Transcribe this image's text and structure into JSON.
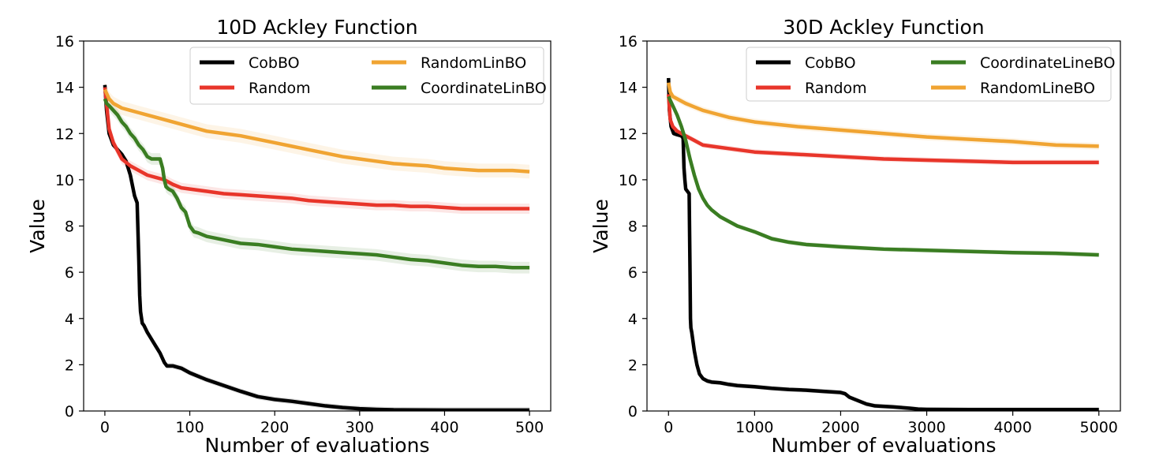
{
  "chart_data": [
    {
      "type": "line",
      "title": "10D Ackley Function",
      "xlabel": "Number of evaluations",
      "ylabel": "Value",
      "xlim": [
        -25,
        525
      ],
      "ylim": [
        0,
        16
      ],
      "xticks": [
        0,
        100,
        200,
        300,
        400,
        500
      ],
      "yticks": [
        0,
        2,
        4,
        6,
        8,
        10,
        12,
        14,
        16
      ],
      "grid": false,
      "legend": {
        "placement": "top-right",
        "columns": 2
      },
      "series": [
        {
          "name": "CobBO",
          "color": "#000000",
          "x": [
            0,
            2,
            5,
            10,
            15,
            20,
            25,
            30,
            35,
            38,
            40,
            41,
            42,
            44,
            46,
            50,
            55,
            60,
            65,
            70,
            73,
            80,
            90,
            100,
            120,
            140,
            160,
            180,
            200,
            220,
            240,
            260,
            280,
            300,
            320,
            340,
            400,
            450,
            500
          ],
          "y": [
            14.1,
            13.0,
            12.0,
            11.5,
            11.3,
            11.1,
            10.8,
            10.2,
            9.3,
            9.0,
            6.5,
            5.0,
            4.3,
            3.8,
            3.7,
            3.4,
            3.1,
            2.8,
            2.5,
            2.1,
            1.95,
            1.95,
            1.85,
            1.65,
            1.35,
            1.1,
            0.85,
            0.62,
            0.5,
            0.42,
            0.32,
            0.22,
            0.15,
            0.1,
            0.07,
            0.05,
            0.04,
            0.04,
            0.04
          ],
          "band": 0.12
        },
        {
          "name": "Random",
          "color": "#e8352a",
          "x": [
            0,
            5,
            10,
            20,
            30,
            40,
            50,
            60,
            70,
            80,
            90,
            100,
            120,
            140,
            160,
            180,
            200,
            220,
            240,
            260,
            280,
            300,
            320,
            340,
            360,
            380,
            400,
            420,
            440,
            460,
            480,
            500
          ],
          "y": [
            14.0,
            12.2,
            11.6,
            10.9,
            10.6,
            10.4,
            10.2,
            10.1,
            10.0,
            9.8,
            9.65,
            9.6,
            9.5,
            9.4,
            9.35,
            9.3,
            9.25,
            9.2,
            9.1,
            9.05,
            9.0,
            8.95,
            8.9,
            8.9,
            8.85,
            8.85,
            8.8,
            8.75,
            8.75,
            8.75,
            8.75,
            8.75
          ],
          "band": 0.22
        },
        {
          "name": "RandomLinBO",
          "color": "#f0a432",
          "x": [
            0,
            5,
            10,
            20,
            30,
            40,
            50,
            60,
            80,
            100,
            120,
            140,
            160,
            180,
            200,
            220,
            240,
            260,
            280,
            300,
            320,
            340,
            360,
            380,
            400,
            420,
            440,
            460,
            480,
            500
          ],
          "y": [
            13.9,
            13.5,
            13.3,
            13.1,
            13.0,
            12.9,
            12.8,
            12.7,
            12.5,
            12.3,
            12.1,
            12.0,
            11.9,
            11.75,
            11.6,
            11.45,
            11.3,
            11.15,
            11.0,
            10.9,
            10.8,
            10.7,
            10.65,
            10.6,
            10.5,
            10.45,
            10.4,
            10.4,
            10.4,
            10.35
          ],
          "band": 0.3
        },
        {
          "name": "CoordinateLinBO",
          "color": "#3a7d22",
          "x": [
            0,
            2,
            5,
            10,
            15,
            20,
            25,
            30,
            35,
            40,
            45,
            50,
            55,
            60,
            65,
            68,
            70,
            72,
            75,
            80,
            85,
            90,
            95,
            100,
            105,
            110,
            120,
            140,
            160,
            180,
            200,
            220,
            240,
            260,
            280,
            300,
            320,
            340,
            360,
            380,
            400,
            420,
            440,
            460,
            480,
            500
          ],
          "y": [
            13.5,
            13.3,
            13.2,
            13.0,
            12.8,
            12.5,
            12.3,
            12.0,
            11.8,
            11.5,
            11.3,
            11.0,
            10.9,
            10.9,
            10.9,
            10.5,
            10.0,
            9.7,
            9.6,
            9.5,
            9.2,
            8.8,
            8.6,
            8.0,
            7.75,
            7.7,
            7.55,
            7.4,
            7.25,
            7.2,
            7.1,
            7.0,
            6.95,
            6.9,
            6.85,
            6.8,
            6.75,
            6.65,
            6.55,
            6.5,
            6.4,
            6.3,
            6.25,
            6.25,
            6.2,
            6.2
          ],
          "band": 0.25
        }
      ]
    },
    {
      "type": "line",
      "title": "30D Ackley Function",
      "xlabel": "Number of evaluations",
      "ylabel": "Value",
      "xlim": [
        -250,
        5250
      ],
      "ylim": [
        0,
        16
      ],
      "xticks": [
        0,
        1000,
        2000,
        3000,
        4000,
        5000
      ],
      "yticks": [
        0,
        2,
        4,
        6,
        8,
        10,
        12,
        14,
        16
      ],
      "grid": false,
      "legend": {
        "placement": "top-right",
        "columns": 2
      },
      "series": [
        {
          "name": "CobBO",
          "color": "#000000",
          "x": [
            0,
            10,
            30,
            60,
            100,
            150,
            170,
            180,
            190,
            200,
            220,
            240,
            250,
            255,
            260,
            270,
            300,
            330,
            360,
            400,
            450,
            500,
            600,
            700,
            800,
            1000,
            1200,
            1400,
            1600,
            1800,
            2000,
            2050,
            2100,
            2200,
            2300,
            2400,
            2600,
            2800,
            2900,
            3000,
            3500,
            4000,
            4500,
            5000
          ],
          "y": [
            14.4,
            13.0,
            12.3,
            12.0,
            11.95,
            11.9,
            11.8,
            10.5,
            10.0,
            9.6,
            9.5,
            9.4,
            6.0,
            4.0,
            3.6,
            3.4,
            2.6,
            2.0,
            1.6,
            1.4,
            1.3,
            1.25,
            1.22,
            1.15,
            1.1,
            1.05,
            0.98,
            0.93,
            0.9,
            0.85,
            0.8,
            0.75,
            0.6,
            0.45,
            0.3,
            0.22,
            0.18,
            0.12,
            0.08,
            0.07,
            0.06,
            0.06,
            0.06,
            0.06
          ],
          "band": 0.1
        },
        {
          "name": "Random",
          "color": "#e8352a",
          "x": [
            0,
            20,
            50,
            100,
            200,
            300,
            400,
            500,
            700,
            1000,
            1500,
            2000,
            2500,
            3000,
            3500,
            4000,
            4500,
            5000
          ],
          "y": [
            13.7,
            12.6,
            12.3,
            12.1,
            11.9,
            11.7,
            11.5,
            11.45,
            11.35,
            11.2,
            11.1,
            11.0,
            10.9,
            10.85,
            10.8,
            10.75,
            10.75,
            10.75
          ],
          "band": 0.12
        },
        {
          "name": "CoordinateLineBO",
          "color": "#3a7d22",
          "x": [
            0,
            50,
            100,
            150,
            200,
            250,
            300,
            350,
            400,
            450,
            500,
            600,
            700,
            800,
            1000,
            1200,
            1400,
            1600,
            1800,
            2000,
            2500,
            3000,
            3500,
            4000,
            4500,
            5000
          ],
          "y": [
            13.6,
            13.2,
            12.8,
            12.3,
            11.7,
            10.9,
            10.2,
            9.6,
            9.2,
            8.9,
            8.7,
            8.4,
            8.2,
            8.0,
            7.75,
            7.45,
            7.3,
            7.2,
            7.15,
            7.1,
            7.0,
            6.95,
            6.9,
            6.85,
            6.82,
            6.75
          ],
          "band": 0.1
        },
        {
          "name": "RandomLineBO",
          "color": "#f0a432",
          "x": [
            0,
            20,
            50,
            100,
            200,
            300,
            400,
            500,
            700,
            1000,
            1500,
            2000,
            2500,
            3000,
            3500,
            4000,
            4500,
            5000
          ],
          "y": [
            14.2,
            13.8,
            13.6,
            13.5,
            13.3,
            13.15,
            13.0,
            12.9,
            12.7,
            12.5,
            12.3,
            12.15,
            12.0,
            11.85,
            11.75,
            11.65,
            11.5,
            11.45
          ],
          "band": 0.15
        }
      ]
    }
  ]
}
